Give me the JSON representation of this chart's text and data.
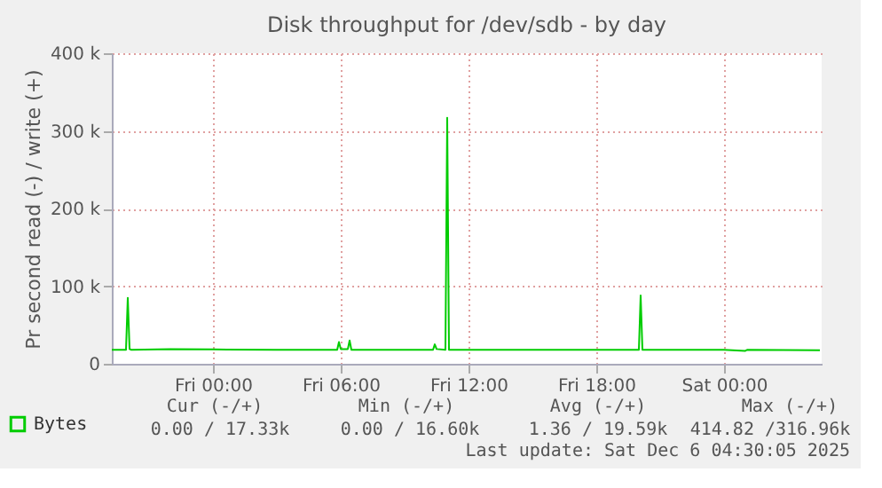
{
  "chart_data": {
    "type": "line",
    "title": "Disk throughput for /dev/sdb - by day",
    "ylabel": "Pr second read (-) / write (+)",
    "x": [
      "2025-12-04T19:15",
      "2025-12-04T19:55",
      "2025-12-04T20:00",
      "2025-12-04T20:05",
      "2025-12-04T20:10",
      "2025-12-04T22:00",
      "2025-12-05T00:00",
      "2025-12-05T03:00",
      "2025-12-05T05:50",
      "2025-12-05T05:55",
      "2025-12-05T06:00",
      "2025-12-05T06:20",
      "2025-12-05T06:25",
      "2025-12-05T06:30",
      "2025-12-05T09:00",
      "2025-12-05T10:20",
      "2025-12-05T10:25",
      "2025-12-05T10:30",
      "2025-12-05T10:55",
      "2025-12-05T11:00",
      "2025-12-05T11:05",
      "2025-12-05T14:00",
      "2025-12-05T18:00",
      "2025-12-05T20:00",
      "2025-12-05T20:05",
      "2025-12-05T20:10",
      "2025-12-06T00:00",
      "2025-12-06T01:00",
      "2025-12-06T01:05",
      "2025-12-06T04:30"
    ],
    "series": [
      {
        "name": "Bytes",
        "color": "#00cc00",
        "values": [
          18000,
          18000,
          85000,
          19000,
          18000,
          19000,
          18500,
          18000,
          18000,
          28000,
          19000,
          19000,
          30000,
          18000,
          18000,
          18000,
          25000,
          19000,
          18000,
          316960,
          18000,
          18000,
          18000,
          18000,
          88000,
          18000,
          18000,
          16600,
          18000,
          17330
        ]
      }
    ],
    "xlim": [
      "2025-12-04T19:15",
      "2025-12-06T04:35"
    ],
    "xticks": [
      {
        "value": "2025-12-05T00:00",
        "label": "Fri 00:00"
      },
      {
        "value": "2025-12-05T06:00",
        "label": "Fri 06:00"
      },
      {
        "value": "2025-12-05T12:00",
        "label": "Fri 12:00"
      },
      {
        "value": "2025-12-05T18:00",
        "label": "Fri 18:00"
      },
      {
        "value": "2025-12-06T00:00",
        "label": "Sat 00:00"
      }
    ],
    "ylim": [
      0,
      400000
    ],
    "yticks": [
      0,
      {
        "value": 100000,
        "label": "100 k"
      },
      {
        "value": 200000,
        "label": "200 k"
      },
      {
        "value": 300000,
        "label": "300 k"
      },
      {
        "value": 400000,
        "label": "400 k"
      }
    ],
    "grid": true,
    "legend": "bottom",
    "marker": "none",
    "line_style": "solid",
    "annotations": [
      "Cur (-/+)",
      "Min (-/+)",
      "Avg (-/+)",
      "Max (-/+)",
      "0.00 / 17.33k",
      "0.00 / 16.60k",
      "1.36 / 19.59k",
      "414.82 /316.96k",
      "Last update: Sat Dec  6 04:30:05 2025"
    ]
  }
}
